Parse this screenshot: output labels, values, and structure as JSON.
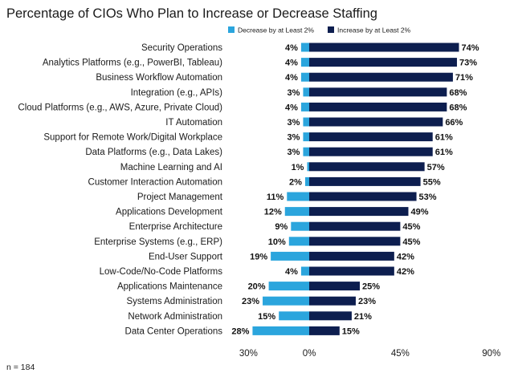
{
  "chart_data": {
    "type": "bar",
    "orientation": "horizontal-diverging",
    "title": "Percentage of CIOs Who Plan to Increase or Decrease Staffing",
    "note": "n = 184",
    "legend": {
      "placement": "top-right"
    },
    "colors": {
      "decrease": "#2ba5dd",
      "increase": "#0d1e4f"
    },
    "axis": {
      "range": [
        -30,
        90
      ],
      "ticks": [
        {
          "value": -30,
          "label": "30%"
        },
        {
          "value": 0,
          "label": "0%"
        },
        {
          "value": 45,
          "label": "45%"
        },
        {
          "value": 90,
          "label": "90%"
        }
      ]
    },
    "categories": [
      "Security Operations",
      "Analytics Platforms (e.g., PowerBI, Tableau)",
      "Business Workflow Automation",
      "Integration (e.g., APIs)",
      "Cloud Platforms (e.g., AWS, Azure, Private Cloud)",
      "IT Automation",
      "Support for Remote Work/Digital Workplace",
      "Data Platforms (e.g., Data Lakes)",
      "Machine Learning and AI",
      "Customer Interaction Automation",
      "Project Management",
      "Applications Development",
      "Enterprise Architecture",
      "Enterprise Systems (e.g., ERP)",
      "End-User Support",
      "Low-Code/No-Code Platforms",
      "Applications Maintenance",
      "Systems Administration",
      "Network Administration",
      "Data Center Operations"
    ],
    "series": [
      {
        "name": "Decrease by at Least 2%",
        "key": "decrease",
        "values": [
          4,
          4,
          4,
          3,
          4,
          3,
          3,
          3,
          1,
          2,
          11,
          12,
          9,
          10,
          19,
          4,
          20,
          23,
          15,
          28
        ],
        "labels": [
          "4%",
          "4%",
          "4%",
          "3%",
          "4%",
          "3%",
          "3%",
          "3%",
          "1%",
          "2%",
          "11%",
          "12%",
          "9%",
          "10%",
          "19%",
          "4%",
          "20%",
          "23%",
          "15%",
          "28%"
        ]
      },
      {
        "name": "Increase by at Least 2%",
        "key": "increase",
        "values": [
          74,
          73,
          71,
          68,
          68,
          66,
          61,
          61,
          57,
          55,
          53,
          49,
          45,
          45,
          42,
          42,
          25,
          23,
          21,
          15
        ],
        "labels": [
          "74%",
          "73%",
          "71%",
          "68%",
          "68%",
          "66%",
          "61%",
          "61%",
          "57%",
          "55%",
          "53%",
          "49%",
          "45%",
          "45%",
          "42%",
          "42%",
          "25%",
          "23%",
          "21%",
          "15%"
        ]
      }
    ]
  }
}
